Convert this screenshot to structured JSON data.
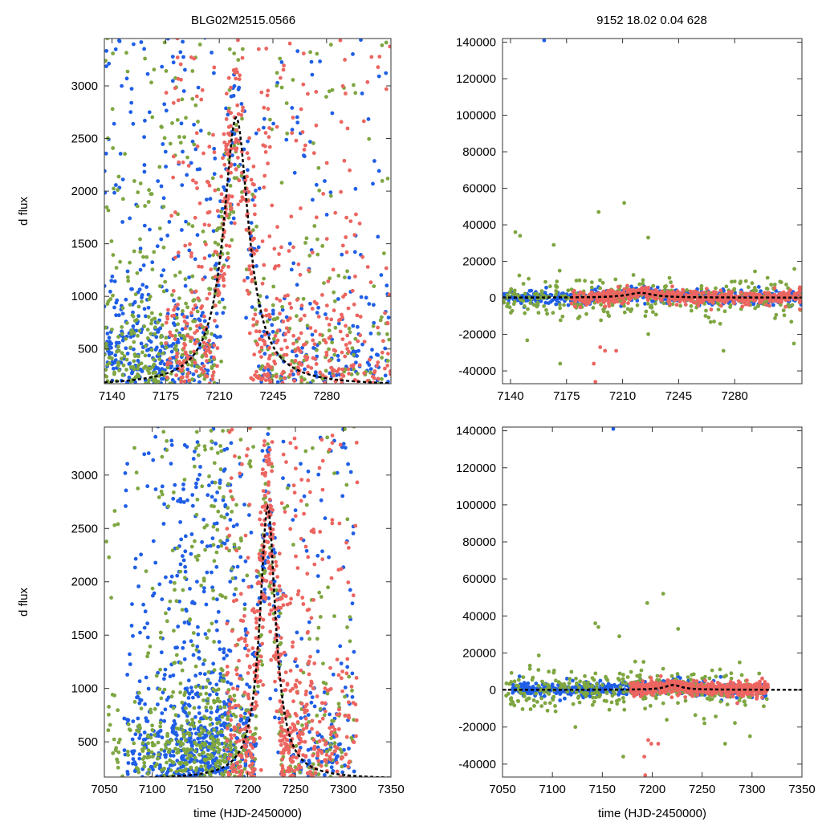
{
  "figure": {
    "title_left": "BLG02M2515.0566",
    "title_right": "9152  18.02  0.04  628"
  },
  "colors": {
    "blue": "#1f5ee6",
    "green": "#7ea641",
    "red": "#ec6560",
    "model": "#000000"
  },
  "chart_data": [
    {
      "id": "top-left",
      "type": "scatter",
      "title": "",
      "xlabel": "",
      "ylabel": "d flux",
      "xlim": [
        7135,
        7322
      ],
      "ylim": [
        170,
        3450
      ],
      "xticks": [
        7140,
        7175,
        7210,
        7245,
        7280
      ],
      "yticks": [
        500,
        1000,
        1500,
        2000,
        2500,
        3000
      ],
      "model": {
        "t0": 7221,
        "peak": 2700,
        "base": 150,
        "width": 10
      },
      "series": [
        {
          "name": "blue",
          "color_key": "blue",
          "seed": 11,
          "count": 700,
          "x_range": [
            7135,
            7322
          ],
          "center": 7160,
          "weights": [
            [
              7135,
              7180,
              0.55
            ],
            [
              7180,
              7322,
              0.45
            ]
          ]
        },
        {
          "name": "green",
          "color_key": "green",
          "seed": 22,
          "count": 550,
          "x_range": [
            7135,
            7322
          ],
          "center": 7170
        },
        {
          "name": "red",
          "color_key": "red",
          "seed": 33,
          "count": 650,
          "x_range": [
            7175,
            7322
          ],
          "center": 7225
        }
      ]
    },
    {
      "id": "top-right",
      "type": "scatter",
      "title": "",
      "xlabel": "",
      "ylabel": "",
      "xlim": [
        7135,
        7322
      ],
      "ylim": [
        -47000,
        142000
      ],
      "xticks": [
        7140,
        7175,
        7210,
        7245,
        7280
      ],
      "yticks": [
        -40000,
        -20000,
        0,
        20000,
        40000,
        60000,
        80000,
        100000,
        120000,
        140000
      ],
      "model": {
        "t0": 7221,
        "peak": 2700,
        "base": 150,
        "width": 10
      },
      "outliers": [
        {
          "x": 7161,
          "y": 141000,
          "color_key": "blue"
        },
        {
          "x": 7143,
          "y": 36000,
          "color_key": "green"
        },
        {
          "x": 7146,
          "y": 34000,
          "color_key": "green"
        },
        {
          "x": 7167,
          "y": 29000,
          "color_key": "green"
        },
        {
          "x": 7171,
          "y": -36000,
          "color_key": "green"
        },
        {
          "x": 7195,
          "y": 47000,
          "color_key": "green"
        },
        {
          "x": 7211,
          "y": 52000,
          "color_key": "green"
        },
        {
          "x": 7226,
          "y": 33000,
          "color_key": "green"
        },
        {
          "x": 7192,
          "y": -36000,
          "color_key": "red"
        },
        {
          "x": 7196,
          "y": -27000,
          "color_key": "red"
        },
        {
          "x": 7199,
          "y": -29000,
          "color_key": "red"
        },
        {
          "x": 7206,
          "y": -29000,
          "color_key": "red"
        },
        {
          "x": 7193,
          "y": -46000,
          "color_key": "red"
        },
        {
          "x": 7273,
          "y": -29000,
          "color_key": "green"
        },
        {
          "x": 7317,
          "y": -25000,
          "color_key": "green"
        }
      ],
      "series": [
        {
          "name": "blue",
          "color_key": "blue",
          "seed": 44,
          "count": 650,
          "x_range": [
            7135,
            7322
          ],
          "spread": 2500
        },
        {
          "name": "green",
          "color_key": "green",
          "seed": 55,
          "count": 320,
          "x_range": [
            7135,
            7322
          ],
          "spread": 8000
        },
        {
          "name": "red",
          "color_key": "red",
          "seed": 66,
          "count": 600,
          "x_range": [
            7178,
            7322
          ],
          "spread": 2500
        }
      ]
    },
    {
      "id": "bottom-left",
      "type": "scatter",
      "title": "",
      "xlabel": "time (HJD-2450000)",
      "ylabel": "d flux",
      "xlim": [
        7050,
        7350
      ],
      "ylim": [
        170,
        3450
      ],
      "xticks": [
        7050,
        7100,
        7150,
        7200,
        7250,
        7300,
        7350
      ],
      "yticks": [
        500,
        1000,
        1500,
        2000,
        2500,
        3000
      ],
      "model": {
        "t0": 7221,
        "peak": 2700,
        "base": 150,
        "width": 10
      },
      "series": [
        {
          "name": "blue",
          "color_key": "blue",
          "seed": 77,
          "count": 900,
          "x_range": [
            7070,
            7312
          ],
          "center": 7150
        },
        {
          "name": "green",
          "color_key": "green",
          "seed": 88,
          "count": 650,
          "x_range": [
            7052,
            7312
          ],
          "center": 7160
        },
        {
          "name": "red",
          "color_key": "red",
          "seed": 99,
          "count": 650,
          "x_range": [
            7178,
            7315
          ],
          "center": 7225
        }
      ]
    },
    {
      "id": "bottom-right",
      "type": "scatter",
      "title": "",
      "xlabel": "time (HJD-2450000)",
      "ylabel": "",
      "xlim": [
        7050,
        7350
      ],
      "ylim": [
        -47000,
        142000
      ],
      "xticks": [
        7050,
        7100,
        7150,
        7200,
        7250,
        7300,
        7350
      ],
      "yticks": [
        -40000,
        -20000,
        0,
        20000,
        40000,
        60000,
        80000,
        100000,
        120000,
        140000
      ],
      "model": {
        "t0": 7221,
        "peak": 2700,
        "base": 150,
        "width": 10
      },
      "outliers": [
        {
          "x": 7161,
          "y": 141000,
          "color_key": "blue"
        },
        {
          "x": 7143,
          "y": 36000,
          "color_key": "green"
        },
        {
          "x": 7146,
          "y": 34000,
          "color_key": "green"
        },
        {
          "x": 7167,
          "y": 29000,
          "color_key": "green"
        },
        {
          "x": 7171,
          "y": -36000,
          "color_key": "green"
        },
        {
          "x": 7195,
          "y": 47000,
          "color_key": "green"
        },
        {
          "x": 7211,
          "y": 52000,
          "color_key": "green"
        },
        {
          "x": 7226,
          "y": 33000,
          "color_key": "green"
        },
        {
          "x": 7192,
          "y": -36000,
          "color_key": "red"
        },
        {
          "x": 7196,
          "y": -27000,
          "color_key": "red"
        },
        {
          "x": 7199,
          "y": -29000,
          "color_key": "red"
        },
        {
          "x": 7206,
          "y": -29000,
          "color_key": "red"
        },
        {
          "x": 7193,
          "y": -46000,
          "color_key": "red"
        },
        {
          "x": 7123,
          "y": -20000,
          "color_key": "green"
        },
        {
          "x": 7273,
          "y": -29000,
          "color_key": "green"
        },
        {
          "x": 7298,
          "y": -25000,
          "color_key": "green"
        }
      ],
      "series": [
        {
          "name": "blue",
          "color_key": "blue",
          "seed": 111,
          "count": 650,
          "x_range": [
            7060,
            7315
          ],
          "spread": 2500
        },
        {
          "name": "green",
          "color_key": "green",
          "seed": 122,
          "count": 320,
          "x_range": [
            7052,
            7315
          ],
          "spread": 8000
        },
        {
          "name": "red",
          "color_key": "red",
          "seed": 133,
          "count": 600,
          "x_range": [
            7178,
            7316
          ],
          "spread": 2500
        }
      ]
    }
  ]
}
